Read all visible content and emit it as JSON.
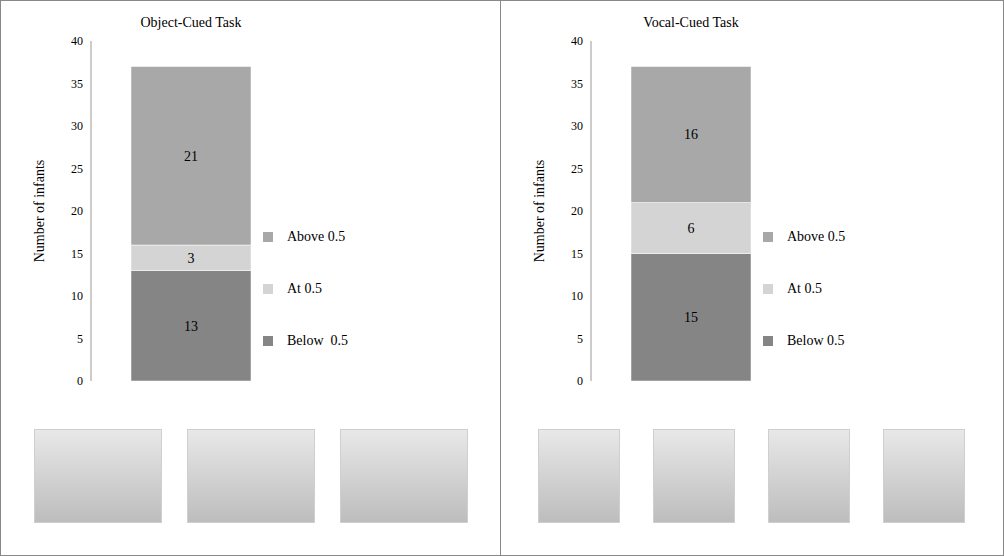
{
  "chart_data": [
    {
      "type": "bar",
      "title": "Object-Cued Task",
      "y_label": "Number of infants",
      "categories": [
        null
      ],
      "series": [
        {
          "name": "Below  0.5",
          "color": "#858585",
          "values": [
            13
          ]
        },
        {
          "name": "At 0.5",
          "color": "#d4d4d4",
          "values": [
            3
          ]
        },
        {
          "name": "Above 0.5",
          "color": "#a8a8a8",
          "values": [
            21
          ]
        }
      ],
      "stacked": true,
      "data_labels": true,
      "ylim": [
        0,
        40
      ],
      "yticks": [
        0,
        5,
        10,
        15,
        20,
        25,
        30,
        35,
        40
      ],
      "legend": "right",
      "tick_labels": "y"
    },
    {
      "type": "bar",
      "title": "Vocal-Cued Task",
      "y_label": "Number of infants",
      "categories": [
        null
      ],
      "series": [
        {
          "name": "Below 0.5",
          "color": "#858585",
          "values": [
            15
          ]
        },
        {
          "name": "At 0.5",
          "color": "#d4d4d4",
          "values": [
            6
          ]
        },
        {
          "name": "Above 0.5",
          "color": "#a8a8a8",
          "values": [
            16
          ]
        }
      ],
      "stacked": true,
      "data_labels": true,
      "ylim": [
        0,
        40
      ],
      "yticks": [
        0,
        5,
        10,
        15,
        20,
        25,
        30,
        35,
        40
      ],
      "legend": "right",
      "tick_labels": "y"
    }
  ]
}
